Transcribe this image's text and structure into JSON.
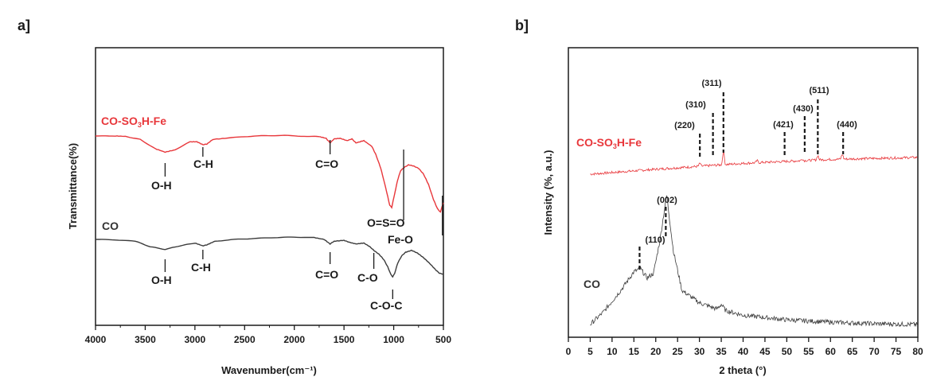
{
  "colors": {
    "red": "#e8373b",
    "dark": "#3b3b3b",
    "axis": "#1a1a1a"
  },
  "chart_data": [
    {
      "panel_label": "a]",
      "type": "line",
      "xlabel": "Wavenumber(cm⁻¹)",
      "ylabel": "Transmittance(%)",
      "xlim": [
        4000,
        500
      ],
      "xticks": [
        4000,
        3500,
        3000,
        2500,
        2000,
        1500,
        1000,
        500
      ],
      "grid": false,
      "series": [
        {
          "name": "CO-SO₃H-Fe",
          "color": "#e8373b",
          "points": [
            [
              4000,
              0.0
            ],
            [
              3800,
              0.0
            ],
            [
              3700,
              -0.3
            ],
            [
              3550,
              -3
            ],
            [
              3400,
              -11
            ],
            [
              3300,
              -14
            ],
            [
              3200,
              -12
            ],
            [
              3050,
              -5
            ],
            [
              2980,
              -5
            ],
            [
              2920,
              -7.5
            ],
            [
              2880,
              -7
            ],
            [
              2820,
              -3
            ],
            [
              2700,
              -2
            ],
            [
              2500,
              -0.5
            ],
            [
              2300,
              0.3
            ],
            [
              2100,
              0.5
            ],
            [
              1900,
              -0.2
            ],
            [
              1750,
              -0.5
            ],
            [
              1680,
              -2
            ],
            [
              1640,
              -6
            ],
            [
              1600,
              -2.5
            ],
            [
              1540,
              -2
            ],
            [
              1470,
              -4
            ],
            [
              1420,
              -2.5
            ],
            [
              1380,
              -6
            ],
            [
              1300,
              -4
            ],
            [
              1220,
              -9
            ],
            [
              1180,
              -16
            ],
            [
              1130,
              -28
            ],
            [
              1080,
              -45
            ],
            [
              1040,
              -60
            ],
            [
              1020,
              -62
            ],
            [
              990,
              -50
            ],
            [
              960,
              -38
            ],
            [
              930,
              -30
            ],
            [
              890,
              -27
            ],
            [
              850,
              -25
            ],
            [
              800,
              -26
            ],
            [
              750,
              -28
            ],
            [
              700,
              -33
            ],
            [
              650,
              -42
            ],
            [
              600,
              -55
            ],
            [
              560,
              -63
            ],
            [
              530,
              -66
            ],
            [
              510,
              -60
            ],
            [
              500,
              -58
            ]
          ]
        },
        {
          "name": "CO",
          "color": "#3b3b3b",
          "points": [
            [
              4000,
              -100
            ],
            [
              3800,
              -100.5
            ],
            [
              3600,
              -102
            ],
            [
              3450,
              -108
            ],
            [
              3300,
              -111
            ],
            [
              3150,
              -107
            ],
            [
              3000,
              -104
            ],
            [
              2920,
              -107
            ],
            [
              2880,
              -106
            ],
            [
              2800,
              -102
            ],
            [
              2600,
              -100
            ],
            [
              2400,
              -99
            ],
            [
              2200,
              -98
            ],
            [
              2000,
              -97.5
            ],
            [
              1800,
              -98
            ],
            [
              1700,
              -100
            ],
            [
              1640,
              -105
            ],
            [
              1600,
              -102
            ],
            [
              1500,
              -101
            ],
            [
              1450,
              -103
            ],
            [
              1380,
              -105
            ],
            [
              1300,
              -104
            ],
            [
              1240,
              -108
            ],
            [
              1200,
              -112
            ],
            [
              1150,
              -116
            ],
            [
              1100,
              -122
            ],
            [
              1060,
              -130
            ],
            [
              1030,
              -138
            ],
            [
              1010,
              -141
            ],
            [
              990,
              -137
            ],
            [
              960,
              -126
            ],
            [
              920,
              -118
            ],
            [
              880,
              -114
            ],
            [
              820,
              -112
            ],
            [
              760,
              -115
            ],
            [
              700,
              -120
            ],
            [
              640,
              -126
            ],
            [
              580,
              -133
            ],
            [
              540,
              -137
            ],
            [
              500,
              -138
            ]
          ]
        }
      ],
      "annotations": {
        "red_oh": "O-H",
        "red_ch": "C-H",
        "red_co": "C=O",
        "red_oso": "O=S=O",
        "feo": "Fe-O",
        "dark_oh": "O-H",
        "dark_ch": "C-H",
        "dark_co": "C=O",
        "dark_c_o": "C-O",
        "dark_coc": "C-O-C"
      },
      "series_labels": {
        "red": "CO-SO",
        "red_sub": "3",
        "red_tail": "H-Fe",
        "dark": "CO"
      }
    },
    {
      "panel_label": "b]",
      "type": "line",
      "xlabel": "2 theta (°)",
      "ylabel": "Intensity (%, a.u.)",
      "xlim": [
        0,
        80
      ],
      "xticks": [
        0,
        5,
        10,
        15,
        20,
        25,
        30,
        35,
        40,
        45,
        50,
        55,
        60,
        65,
        70,
        75,
        80
      ],
      "grid": false,
      "series": [
        {
          "name": "CO-SO₃H-Fe",
          "color": "#e8373b",
          "baseline": [
            [
              5,
              0
            ],
            [
              20,
              10
            ],
            [
              40,
              22
            ],
            [
              60,
              30
            ],
            [
              80,
              34
            ]
          ],
          "peaks": [
            [
              30.1,
              6
            ],
            [
              35.5,
              28
            ],
            [
              43.2,
              4
            ],
            [
              53.5,
              4
            ],
            [
              57.1,
              9
            ],
            [
              62.7,
              10
            ]
          ]
        },
        {
          "name": "CO",
          "color": "#3b3b3b",
          "baseline": [
            [
              5,
              0
            ],
            [
              8,
              8
            ],
            [
              12,
              22
            ],
            [
              15,
              34
            ],
            [
              16.5,
              36
            ],
            [
              18,
              30
            ],
            [
              19.5,
              33
            ],
            [
              21,
              55
            ],
            [
              22.5,
              84
            ],
            [
              24,
              48
            ],
            [
              26,
              22
            ],
            [
              30,
              14
            ],
            [
              34,
              10
            ],
            [
              35,
              13
            ],
            [
              36,
              9
            ],
            [
              40,
              6
            ],
            [
              50,
              3
            ],
            [
              60,
              1.5
            ],
            [
              70,
              0.5
            ],
            [
              80,
              0
            ]
          ],
          "peaks": []
        }
      ],
      "peak_labels": [
        "(220)",
        "(310)",
        "(311)",
        "(421)",
        "(430)",
        "(511)",
        "(440)",
        "(110)",
        "(002)"
      ],
      "series_labels": {
        "red": "CO-SO",
        "red_sub": "3",
        "red_tail": "H-Fe",
        "dark": "CO"
      }
    }
  ]
}
